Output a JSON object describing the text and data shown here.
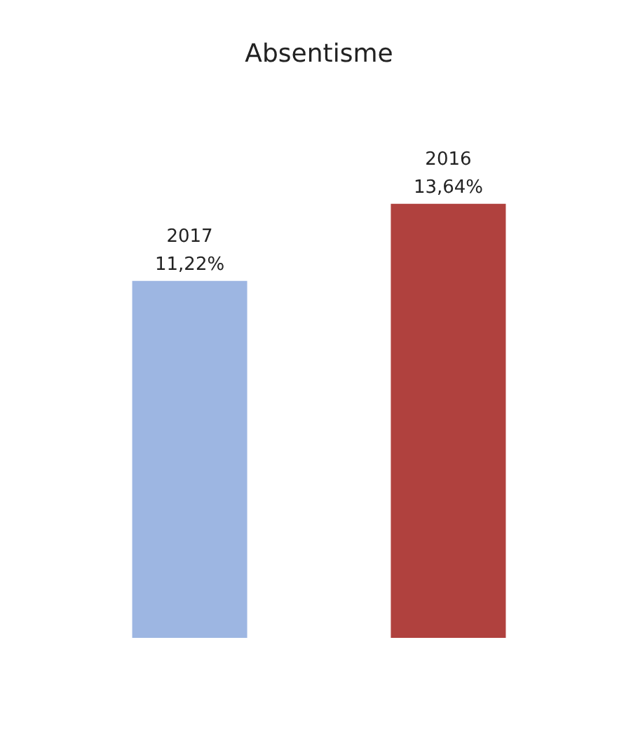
{
  "chart_data": {
    "type": "bar",
    "title": "Absentisme",
    "categories": [
      "2017",
      "2016"
    ],
    "values": [
      11.22,
      13.64
    ],
    "value_labels": [
      "11,22%",
      "13,64%"
    ],
    "colors": [
      "#9db6e2",
      "#b0413e"
    ]
  }
}
